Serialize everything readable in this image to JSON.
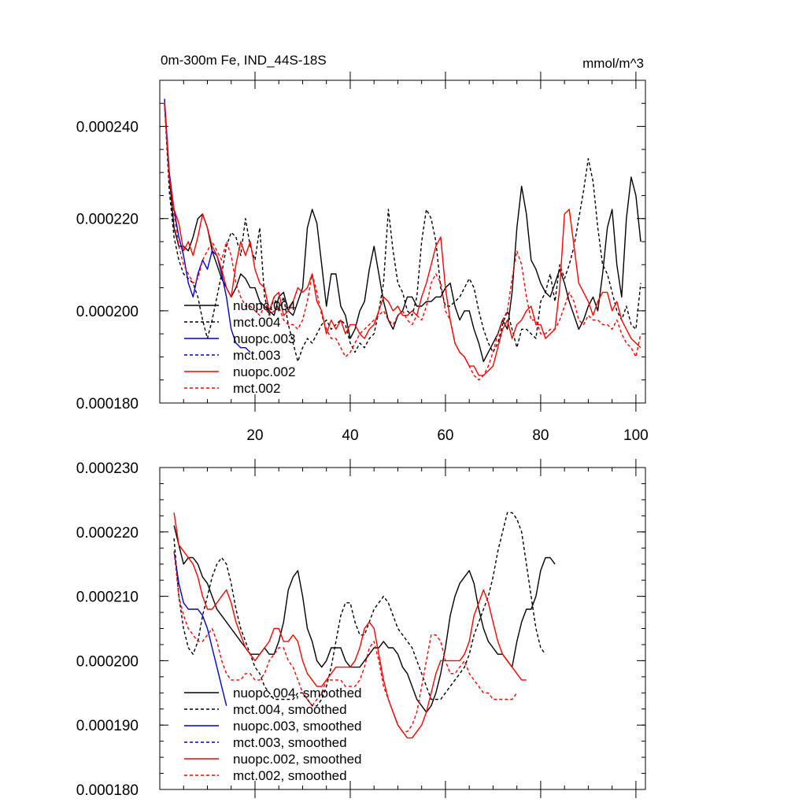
{
  "chart_data": [
    {
      "type": "line",
      "title": "0m-300m Fe, IND_44S-18S",
      "units": "mmol/m^3",
      "xlim": [
        0,
        102
      ],
      "ylim": [
        0.00018,
        0.00025
      ],
      "x_ticks": [
        20,
        40,
        60,
        80,
        100
      ],
      "x_tick_labels": [
        "20",
        "40",
        "60",
        "80",
        "100"
      ],
      "y_ticks": [
        0.00018,
        0.0002,
        0.00022,
        0.00024
      ],
      "y_tick_labels": [
        "0.000180",
        "0.000200",
        "0.000220",
        "0.000240"
      ],
      "series": [
        {
          "name": "nuopc.004",
          "color": "#000000",
          "dashed": false,
          "x_start": 1,
          "values": [
            0.000245,
            0.000229,
            0.000218,
            0.000214,
            0.000214,
            0.000213,
            0.000216,
            0.00022,
            0.000221,
            0.000218,
            0.000213,
            0.00021,
            0.000207,
            0.000205,
            0.000203,
            0.000205,
            0.000208,
            0.000207,
            0.000205,
            0.000205,
            0.000202,
            0.000201,
            0.0002,
            0.000199,
            0.000203,
            0.000204,
            0.0002,
            0.000199,
            0.000202,
            0.000205,
            0.000218,
            0.000222,
            0.000219,
            0.00021,
            0.000201,
            0.000208,
            0.000208,
            0.000201,
            0.000199,
            0.000194,
            0.000196,
            0.0002,
            0.000202,
            0.000209,
            0.000214,
            0.000208,
            0.000202,
            0.000198,
            0.000196,
            0.000199,
            0.0002,
            0.000203,
            0.000203,
            0.000201,
            0.000201,
            0.000202,
            0.000202,
            0.000203,
            0.000203,
            0.000205,
            0.000206,
            0.000201,
            0.000198,
            0.0002,
            0.0002,
            0.000196,
            0.000193,
            0.000189,
            0.000191,
            0.000193,
            0.000195,
            0.000198,
            0.000196,
            0.000204,
            0.000218,
            0.000227,
            0.000221,
            0.000211,
            0.000209,
            0.000206,
            0.000204,
            0.000203,
            0.000206,
            0.000209,
            0.000206,
            0.000202,
            0.000199,
            0.000196,
            0.000198,
            0.000201,
            0.000203,
            0.0002,
            0.000208,
            0.000218,
            0.000222,
            0.00021,
            0.000203,
            0.00022,
            0.000229,
            0.000225,
            0.000215
          ]
        },
        {
          "name": "mct.004",
          "color": "#000000",
          "dashed": true,
          "x_start": 1,
          "values": [
            0.000245,
            0.000226,
            0.000216,
            0.000211,
            0.000208,
            0.000207,
            0.000206,
            0.000203,
            0.000198,
            0.000194,
            0.000198,
            0.000203,
            0.000208,
            0.000214,
            0.000217,
            0.000216,
            0.000212,
            0.00022,
            0.000214,
            0.000211,
            0.000218,
            0.000203,
            0.000199,
            0.000203,
            0.0002,
            0.000203,
            0.000197,
            0.000193,
            0.000189,
            0.000192,
            0.000194,
            0.000193,
            0.000195,
            0.000197,
            0.000198,
            0.000196,
            0.000197,
            0.000198,
            0.000197,
            0.000193,
            0.000191,
            0.000193,
            0.000192,
            0.000194,
            0.000195,
            0.0002,
            0.000206,
            0.000222,
            0.000213,
            0.000206,
            0.000204,
            0.0002,
            0.000199,
            0.000203,
            0.000215,
            0.000222,
            0.00022,
            0.000215,
            0.000205,
            0.000201,
            0.000201,
            0.000202,
            0.000203,
            0.000205,
            0.000207,
            0.000205,
            0.0002,
            0.000196,
            0.000193,
            0.000191,
            0.000193,
            0.000197,
            0.0002,
            0.000196,
            0.000192,
            0.000196,
            0.000196,
            0.000195,
            0.000194,
            0.000202,
            0.000204,
            0.000208,
            0.000202,
            0.00021,
            0.000207,
            0.00021,
            0.000214,
            0.00022,
            0.000226,
            0.000233,
            0.000228,
            0.000218,
            0.00021,
            0.000208,
            0.000204,
            0.0002,
            0.000198,
            0.000201,
            0.000197,
            0.000196,
            0.000206
          ]
        },
        {
          "name": "nuopc.003",
          "color": "#0000cc",
          "dashed": false,
          "x_start": 1,
          "values": [
            0.000246,
            0.00023,
            0.000222,
            0.000216,
            0.000212,
            0.000206,
            0.000203,
            0.000208,
            0.000211,
            0.000209,
            0.000213,
            0.000212,
            0.000208,
            0.000203,
            0.000196,
            0.000193,
            0.000192,
            0.000192,
            0.000191
          ]
        },
        {
          "name": "mct.003",
          "color": "#0000cc",
          "dashed": true,
          "x_start": 1,
          "values": []
        },
        {
          "name": "nuopc.002",
          "color": "#ff0000",
          "dashed": false,
          "x_start": 1,
          "values": [
            0.000245,
            0.000229,
            0.000222,
            0.000219,
            0.000213,
            0.000215,
            0.000212,
            0.000216,
            0.000221,
            0.000218,
            0.000214,
            0.000212,
            0.000209,
            0.000205,
            0.000203,
            0.00021,
            0.000215,
            0.000212,
            0.000215,
            0.000209,
            0.000206,
            0.000205,
            0.0002,
            0.000203,
            0.000204,
            0.000199,
            0.0002,
            0.000202,
            0.000205,
            0.000204,
            0.000205,
            0.000208,
            0.000202,
            0.0002,
            0.000195,
            0.000198,
            0.000196,
            0.000198,
            0.000195,
            0.000197,
            0.000197,
            0.000195,
            0.000194,
            0.000196,
            0.000197,
            0.0002,
            0.000203,
            0.000202,
            0.0002,
            0.000201,
            0.000199,
            0.000199,
            0.0002,
            0.000199,
            0.000203,
            0.000206,
            0.00021,
            0.000214,
            0.000216,
            0.000205,
            0.000198,
            0.000193,
            0.000191,
            0.00019,
            0.000188,
            0.000188,
            0.000186,
            0.000186,
            0.000187,
            0.000188,
            0.000192,
            0.000196,
            0.000198,
            0.000194,
            0.000197,
            0.000198,
            0.0002,
            0.000201,
            0.000197,
            0.000197,
            0.000194,
            0.000195,
            0.000196,
            0.000205,
            0.000221,
            0.000222,
            0.000214,
            0.000206,
            0.000204,
            0.000202,
            0.000199,
            0.000202,
            0.000204,
            0.000204,
            0.0002,
            0.000202,
            0.000198,
            0.000196,
            0.000194,
            0.000193,
            0.000192
          ]
        },
        {
          "name": "mct.002",
          "color": "#ff0000",
          "dashed": true,
          "x_start": 1,
          "values": [
            0.000245,
            0.000229,
            0.000221,
            0.000214,
            0.00021,
            0.000208,
            0.000206,
            0.000207,
            0.000211,
            0.000213,
            0.000215,
            0.000213,
            0.000211,
            0.000215,
            0.000212,
            0.000206,
            0.000203,
            0.000201,
            0.000201,
            0.0002,
            0.000199,
            0.000201,
            0.000199,
            0.0002,
            0.000201,
            0.000198,
            0.000197,
            0.000197,
            0.000196,
            0.000198,
            0.000202,
            0.000208,
            0.000204,
            0.000199,
            0.000196,
            0.000194,
            0.000194,
            0.000192,
            0.00019,
            0.000191,
            0.000193,
            0.000195,
            0.000196,
            0.000197,
            0.000198,
            0.000199,
            0.0002,
            0.000198,
            0.000197,
            0.000199,
            0.0002,
            0.000198,
            0.000197,
            0.000199,
            0.000198,
            0.000201,
            0.000206,
            0.000208,
            0.000206,
            0.0002,
            0.000198,
            0.000193,
            0.000191,
            0.00019,
            0.000188,
            0.000186,
            0.000185,
            0.000186,
            0.000188,
            0.000191,
            0.000195,
            0.000198,
            0.0002,
            0.000207,
            0.000213,
            0.00021,
            0.000203,
            0.000198,
            0.000198,
            0.000195,
            0.000195,
            0.000196,
            0.000196,
            0.000198,
            0.000201,
            0.000204,
            0.000202,
            0.000198,
            0.000197,
            0.000199,
            0.000198,
            0.000198,
            0.000197,
            0.000197,
            0.000196,
            0.000198,
            0.000195,
            0.000193,
            0.000192,
            0.00019,
            0.000195
          ]
        }
      ]
    },
    {
      "type": "line",
      "title": "",
      "xlim": [
        0,
        102
      ],
      "ylim": [
        0.00018,
        0.00023
      ],
      "x_ticks": [
        20,
        40,
        60,
        80,
        100
      ],
      "y_ticks": [
        0.00018,
        0.00019,
        0.0002,
        0.00021,
        0.00022,
        0.00023
      ],
      "y_tick_labels": [
        "0.000180",
        "0.000190",
        "0.000200",
        "0.000210",
        "0.000220",
        "0.000230"
      ],
      "series": [
        {
          "name": "nuopc.004, smoothed",
          "color": "#000000",
          "dashed": false,
          "x_start": 3,
          "values": [
            0.000221,
            0.000218,
            0.000215,
            0.000216,
            0.000216,
            0.000215,
            0.000213,
            0.000212,
            0.00021,
            0.000208,
            0.000207,
            0.000206,
            0.000205,
            0.000204,
            0.000203,
            0.000202,
            0.000201,
            0.000201,
            0.000201,
            0.000202,
            0.000201,
            0.000201,
            0.000203,
            0.000206,
            0.000211,
            0.000213,
            0.000214,
            0.00021,
            0.000205,
            0.000203,
            0.0002,
            0.000199,
            0.0002,
            0.000202,
            0.000202,
            0.000202,
            0.0002,
            0.000199,
            0.000199,
            0.000199,
            0.0002,
            0.000201,
            0.000202,
            0.000202,
            0.000203,
            0.000202,
            0.000202,
            0.000201,
            0.000199,
            0.000198,
            0.000196,
            0.000194,
            0.000193,
            0.000192,
            0.000193,
            0.000195,
            0.000198,
            0.000202,
            0.000207,
            0.00021,
            0.000212,
            0.000213,
            0.000214,
            0.000212,
            0.000208,
            0.000205,
            0.000203,
            0.000202,
            0.000201,
            0.000201,
            0.0002,
            0.000199,
            0.000203,
            0.000206,
            0.000208,
            0.000208,
            0.00021,
            0.000214,
            0.000216,
            0.000216,
            0.000215
          ]
        },
        {
          "name": "mct.004, smoothed",
          "color": "#000000",
          "dashed": true,
          "x_start": 3,
          "values": [
            0.000219,
            0.00021,
            0.000205,
            0.000202,
            0.000201,
            0.000203,
            0.000207,
            0.00021,
            0.000213,
            0.000215,
            0.000216,
            0.000215,
            0.000212,
            0.000208,
            0.000205,
            0.000203,
            0.000201,
            0.000199,
            0.000198,
            0.000196,
            0.000195,
            0.000194,
            0.000194,
            0.000194,
            0.000194,
            0.000194,
            0.000195,
            0.000195,
            0.000194,
            0.000193,
            0.000193,
            0.000194,
            0.000196,
            0.000199,
            0.000203,
            0.000207,
            0.000209,
            0.000209,
            0.000206,
            0.000204,
            0.000204,
            0.000206,
            0.000208,
            0.000209,
            0.00021,
            0.000209,
            0.000207,
            0.000205,
            0.000204,
            0.000203,
            0.000202,
            0.0002,
            0.000198,
            0.000196,
            0.000194,
            0.000194,
            0.000194,
            0.000195,
            0.000196,
            0.000197,
            0.000198,
            0.000199,
            0.000201,
            0.000204,
            0.000206,
            0.000208,
            0.00021,
            0.000213,
            0.000217,
            0.00022,
            0.000223,
            0.000223,
            0.000222,
            0.00022,
            0.000215,
            0.00021,
            0.000205,
            0.000202,
            0.000201
          ]
        },
        {
          "name": "nuopc.003, smoothed",
          "color": "#0000cc",
          "dashed": false,
          "x_start": 3,
          "values": [
            0.000217,
            0.000212,
            0.000209,
            0.000208,
            0.000208,
            0.000208,
            0.000207,
            0.000205,
            0.000202,
            0.000199,
            0.000196,
            0.000193
          ]
        },
        {
          "name": "mct.003, smoothed",
          "color": "#0000cc",
          "dashed": true,
          "x_start": 3,
          "values": []
        },
        {
          "name": "nuopc.002, smoothed",
          "color": "#ff0000",
          "dashed": false,
          "x_start": 3,
          "values": [
            0.000223,
            0.000218,
            0.000217,
            0.000216,
            0.000215,
            0.000213,
            0.00021,
            0.000208,
            0.000208,
            0.000209,
            0.00021,
            0.000211,
            0.000209,
            0.000206,
            0.000204,
            0.000202,
            0.000201,
            0.0002,
            0.000201,
            0.000202,
            0.000203,
            0.000205,
            0.000205,
            0.000203,
            0.000203,
            0.000204,
            0.000203,
            0.0002,
            0.000198,
            0.000197,
            0.000196,
            0.000196,
            0.000197,
            0.000198,
            0.000199,
            0.000199,
            0.000199,
            0.000199,
            0.0002,
            0.000202,
            0.000205,
            0.000206,
            0.000205,
            0.000201,
            0.000197,
            0.000194,
            0.000192,
            0.00019,
            0.000189,
            0.000188,
            0.000188,
            0.000189,
            0.00019,
            0.000192,
            0.000195,
            0.000198,
            0.0002,
            0.0002,
            0.0002,
            0.0002,
            0.0002,
            0.000201,
            0.000203,
            0.000207,
            0.000209,
            0.000211,
            0.000209,
            0.000206,
            0.000203,
            0.000201,
            0.0002,
            0.000199,
            0.000198,
            0.000197,
            0.000197
          ]
        },
        {
          "name": "mct.002, smoothed",
          "color": "#ff0000",
          "dashed": true,
          "x_start": 3,
          "values": [
            0.000217,
            0.00021,
            0.000207,
            0.000205,
            0.000204,
            0.000203,
            0.000203,
            0.000204,
            0.000205,
            0.000203,
            0.0002,
            0.000198,
            0.000197,
            0.000197,
            0.000197,
            0.000198,
            0.000198,
            0.000197,
            0.000197,
            0.000198,
            0.0002,
            0.000201,
            0.000202,
            0.000202,
            0.0002,
            0.000199,
            0.000197,
            0.000195,
            0.000194,
            0.000193,
            0.000194,
            0.000195,
            0.000197,
            0.000197,
            0.000197,
            0.000197,
            0.000196,
            0.000196,
            0.000196,
            0.000197,
            0.000199,
            0.000202,
            0.000203,
            0.0002,
            0.000196,
            0.000194,
            0.000192,
            0.00019,
            0.000189,
            0.000189,
            0.00019,
            0.000192,
            0.000196,
            0.0002,
            0.000204,
            0.000204,
            0.000203,
            0.0002,
            0.000198,
            0.000198,
            0.000199,
            0.0002,
            0.000198,
            0.000197,
            0.000196,
            0.000195,
            0.000195,
            0.000194,
            0.000194,
            0.000194,
            0.000194,
            0.000194,
            0.000195
          ]
        }
      ]
    }
  ]
}
